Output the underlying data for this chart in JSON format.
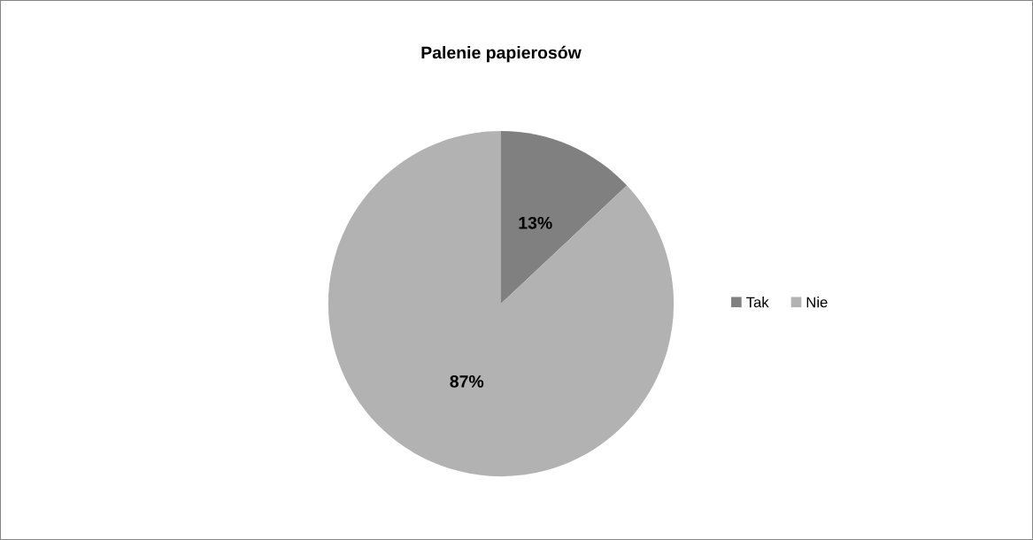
{
  "chart_data": {
    "type": "pie",
    "title": "Palenie papierosów",
    "categories": [
      "Tak",
      "Nie"
    ],
    "values": [
      13,
      87
    ],
    "colors": [
      "#808080",
      "#b2b2b2"
    ],
    "value_labels": [
      "13%",
      "87%"
    ],
    "legend": "right"
  }
}
